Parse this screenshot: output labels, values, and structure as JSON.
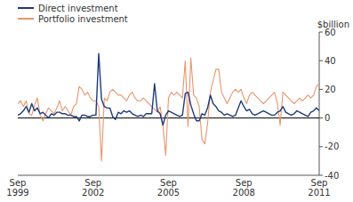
{
  "chart_data": {
    "type": "line",
    "y_label": "$billion",
    "categories": [
      "Sep\n1999",
      null,
      null,
      null,
      null,
      null,
      null,
      null,
      null,
      null,
      null,
      null,
      null,
      null,
      null,
      null,
      null,
      null,
      null,
      null,
      null,
      null,
      null,
      null,
      null,
      null,
      null,
      "Sep\n2002",
      null,
      null,
      null,
      null,
      null,
      null,
      null,
      null,
      null,
      null,
      null,
      null,
      null,
      null,
      null,
      null,
      null,
      null,
      null,
      null,
      null,
      null,
      null,
      null,
      null,
      null,
      "Sep\n2005",
      null,
      null,
      null,
      null,
      null,
      null,
      null,
      null,
      null,
      null,
      null,
      null,
      null,
      null,
      null,
      null,
      null,
      null,
      null,
      null,
      null,
      null,
      null,
      null,
      null,
      null,
      "Sep\n2008",
      null,
      null,
      null,
      null,
      null,
      null,
      null,
      null,
      null,
      null,
      null,
      null,
      null,
      null,
      null,
      null,
      null,
      null,
      null,
      null,
      null,
      null,
      null,
      null,
      null,
      null,
      "Sep\n2011"
    ],
    "series": [
      {
        "name": "Direct investment",
        "color": "#1f3a7a",
        "values": [
          2,
          3,
          5,
          8,
          4,
          10,
          5,
          7,
          3,
          4,
          2,
          0,
          3,
          2,
          4,
          4,
          3,
          3,
          2,
          2,
          1,
          1,
          -2,
          2,
          2,
          1,
          1,
          2,
          2,
          45,
          13,
          8,
          7,
          7,
          1,
          -1,
          4,
          3,
          5,
          4,
          5,
          3,
          2,
          1,
          2,
          1,
          3,
          3,
          3,
          24,
          5,
          3,
          -5,
          2,
          5,
          4,
          3,
          2,
          1,
          2,
          17,
          18,
          9,
          3,
          -2,
          -2,
          3,
          2,
          7,
          16,
          10,
          8,
          5,
          4,
          2,
          3,
          2,
          1,
          2,
          7,
          12,
          8,
          5,
          6,
          3,
          2,
          3,
          4,
          5,
          4,
          3,
          2,
          2,
          4,
          5,
          8,
          4,
          3,
          2,
          3,
          5,
          4,
          3,
          2,
          1,
          4,
          5,
          7,
          5
        ]
      },
      {
        "name": "Portfolio investment",
        "color": "#e8956d",
        "values": [
          10,
          12,
          8,
          12,
          3,
          2,
          9,
          14,
          2,
          -2,
          3,
          7,
          5,
          3,
          7,
          12,
          5,
          8,
          5,
          2,
          8,
          10,
          22,
          20,
          16,
          18,
          14,
          12,
          12,
          8,
          -30,
          14,
          12,
          18,
          20,
          18,
          16,
          16,
          14,
          12,
          16,
          18,
          14,
          12,
          12,
          14,
          12,
          10,
          8,
          6,
          4,
          8,
          -5,
          -26,
          14,
          18,
          16,
          18,
          16,
          14,
          40,
          -6,
          42,
          16,
          14,
          8,
          -15,
          -18,
          -4,
          18,
          26,
          34,
          34,
          18,
          14,
          10,
          14,
          18,
          20,
          18,
          20,
          14,
          10,
          16,
          18,
          16,
          14,
          12,
          10,
          12,
          14,
          16,
          18,
          10,
          -5,
          18,
          16,
          14,
          12,
          10,
          12,
          14,
          12,
          14,
          16,
          14,
          16,
          22,
          24
        ]
      }
    ],
    "ylim": [
      -40,
      60
    ],
    "yticks": [
      -40,
      -20,
      0,
      20,
      40,
      60
    ],
    "grid": false,
    "legend": "upper left"
  }
}
